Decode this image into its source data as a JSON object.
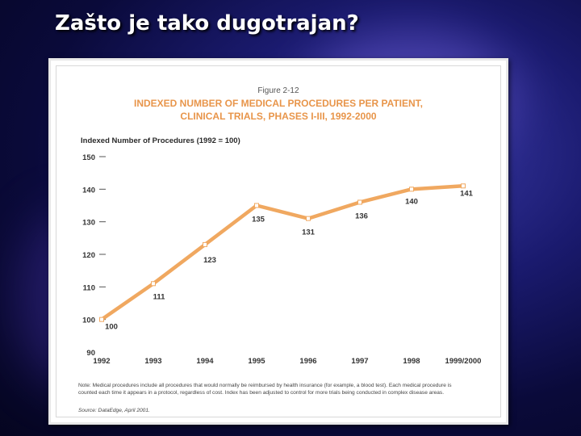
{
  "slide": {
    "title": "Zašto je tako dugotrajan?"
  },
  "chart_data": {
    "type": "line",
    "figure_label": "Figure 2-12",
    "title_lines": [
      "INDEXED NUMBER OF MEDICAL PROCEDURES PER PATIENT,",
      "CLINICAL TRIALS, PHASES I-III, 1992-2000"
    ],
    "ylabel": "Indexed Number of Procedures (1992 = 100)",
    "categories": [
      "1992",
      "1993",
      "1994",
      "1995",
      "1996",
      "1997",
      "1998",
      "1999/2000"
    ],
    "values": [
      100,
      111,
      123,
      135,
      131,
      136,
      140,
      141
    ],
    "data_labels": [
      "100",
      "111",
      "123",
      "135",
      "131",
      "136",
      "140",
      "141"
    ],
    "ylim": [
      90,
      150
    ],
    "yticks": [
      "90",
      "100",
      "110",
      "120",
      "130",
      "140",
      "150"
    ],
    "series_color": "#f0a860",
    "note_lines": [
      "Note: Medical procedures include all procedures that would normally be reimbursed by health insurance (for example, a blood test). Each medical procedure is",
      "counted each time it appears in a protocol, regardless of cost. Index has been adjusted to control for more trials being conducted in complex disease areas."
    ],
    "source": "Source: DataEdge, April 2001."
  }
}
